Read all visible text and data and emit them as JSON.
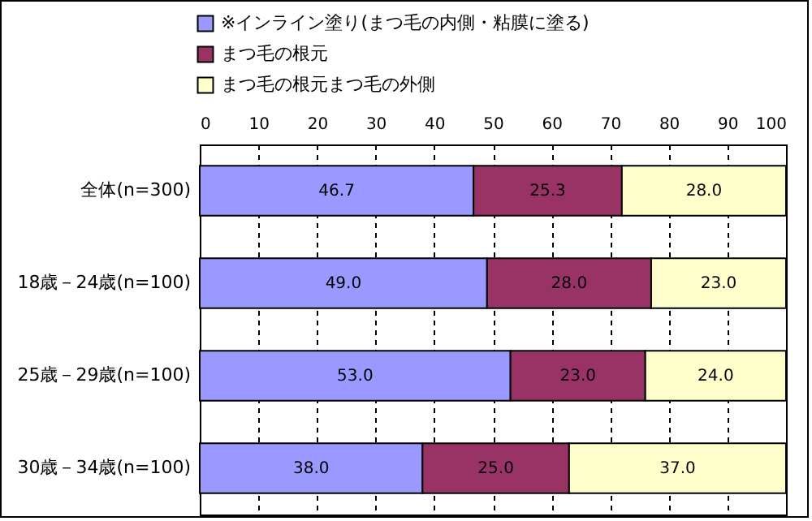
{
  "chart_data": {
    "type": "bar",
    "orientation": "horizontal",
    "stacked": true,
    "categories": [
      "全体(n=300)",
      "18歳－24歳(n=100)",
      "25歳－29歳(n=100)",
      "30歳－34歳(n=100)"
    ],
    "series": [
      {
        "name": "※インライン塗り(まつ毛の内側・粘膜に塗る)",
        "color": "#9999ff",
        "values": [
          46.7,
          49.0,
          53.0,
          38.0
        ],
        "value_labels": [
          "46.7",
          "49.0",
          "53.0",
          "38.0"
        ]
      },
      {
        "name": "まつ毛の根元",
        "color": "#993366",
        "values": [
          25.3,
          28.0,
          23.0,
          25.0
        ],
        "value_labels": [
          "25.3",
          "28.0",
          "23.0",
          "25.0"
        ]
      },
      {
        "name": "まつ毛の根元まつ毛の外側",
        "color": "#ffffcc",
        "values": [
          28.0,
          23.0,
          24.0,
          37.0
        ],
        "value_labels": [
          "28.0",
          "23.0",
          "24.0",
          "37.0"
        ]
      }
    ],
    "xlim": [
      0,
      100
    ],
    "xticks": [
      0,
      10,
      20,
      30,
      40,
      50,
      60,
      70,
      80,
      90,
      100
    ],
    "grid": "x",
    "legend": "top"
  }
}
